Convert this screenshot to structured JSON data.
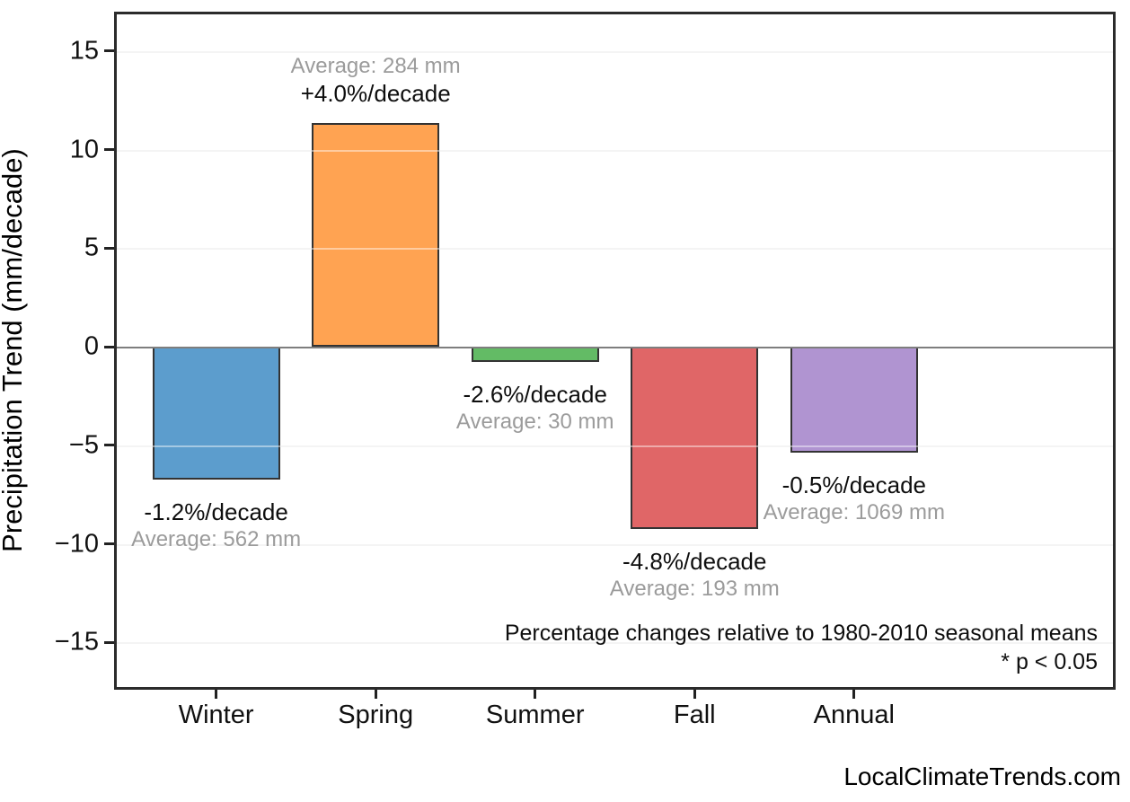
{
  "watermark": "LocalClimateTrends.com",
  "chart_data": {
    "type": "bar",
    "title": "",
    "ylabel": "Precipitation Trend (mm/decade)",
    "categories": [
      "Winter",
      "Spring",
      "Summer",
      "Fall",
      "Annual"
    ],
    "values": [
      -6.74,
      11.36,
      -0.78,
      -9.26,
      -5.35
    ],
    "bar_labels": [
      {
        "trend": "-1.2%/decade",
        "average": "Average: 562 mm"
      },
      {
        "trend": "+4.0%/decade",
        "average": "Average: 284 mm"
      },
      {
        "trend": "-2.6%/decade",
        "average": "Average: 30 mm"
      },
      {
        "trend": "-4.8%/decade",
        "average": "Average: 193 mm"
      },
      {
        "trend": "-0.5%/decade",
        "average": "Average: 1069 mm"
      }
    ],
    "bar_colors": [
      "#5C9DCD",
      "#FFA352",
      "#63BB65",
      "#E06667",
      "#B094D1"
    ],
    "bar_edge_color": "#333333",
    "yticks": [
      15,
      10,
      5,
      0,
      -5,
      -10,
      -15
    ],
    "ylim": [
      -17.4,
      17.0
    ],
    "grid": true,
    "legend": "none",
    "annotations": {
      "note": "Percentage changes relative to 1980-2010 seasonal means",
      "significance": "* p < 0.05"
    }
  }
}
